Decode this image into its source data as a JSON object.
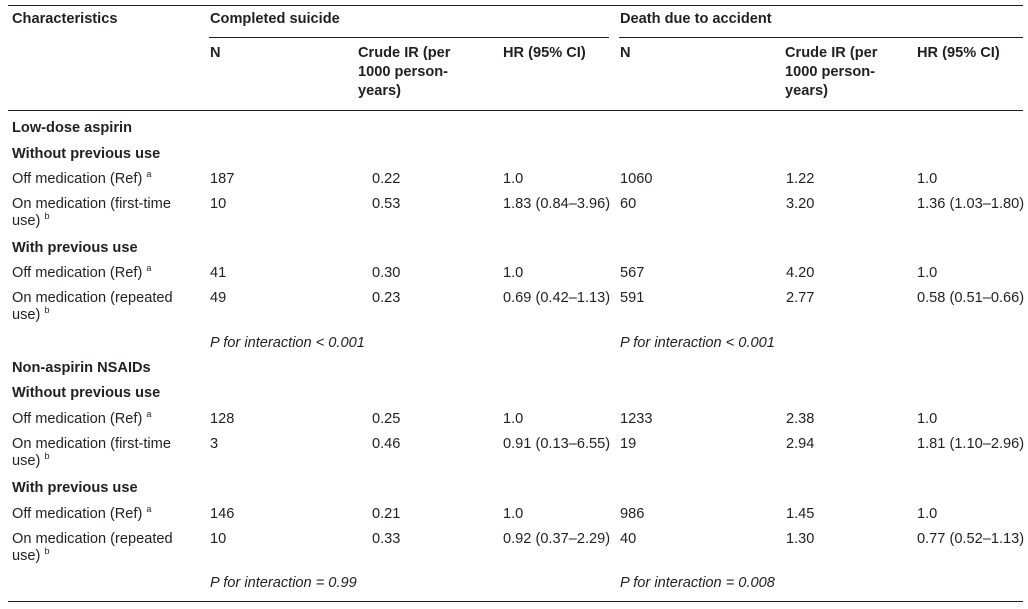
{
  "header": {
    "characteristics": "Characteristics",
    "group1": "Completed suicide",
    "group2": "Death due to accident",
    "n": "N",
    "ir_line1": "Crude IR (per",
    "ir_line2": "1000 person-",
    "ir_line3": "years)",
    "hr": "HR (95% CI)"
  },
  "sections": [
    {
      "title": "Low-dose aspirin",
      "subgroups": [
        {
          "title": "Without previous use",
          "rows": [
            {
              "label1": "Off medication (Ref)",
              "label2": "",
              "sup": "a",
              "s_n": "187",
              "s_ir": "0.22",
              "s_hr": "1.0",
              "a_n": "1060",
              "a_ir": "1.22",
              "a_hr": "1.0"
            },
            {
              "label1": "On medication (first-time",
              "label2": "use)",
              "sup": "b",
              "s_n": "10",
              "s_ir": "0.53",
              "s_hr": "1.83 (0.84–3.96)",
              "a_n": "60",
              "a_ir": "3.20",
              "a_hr": "1.36 (1.03–1.80)"
            }
          ]
        },
        {
          "title": "With previous use",
          "rows": [
            {
              "label1": "Off medication (Ref)",
              "label2": "",
              "sup": "a",
              "s_n": "41",
              "s_ir": "0.30",
              "s_hr": "1.0",
              "a_n": "567",
              "a_ir": "4.20",
              "a_hr": "1.0"
            },
            {
              "label1": "On medication (repeated",
              "label2": "use)",
              "sup": "b",
              "s_n": "49",
              "s_ir": "0.23",
              "s_hr": "0.69 (0.42–1.13)",
              "a_n": "591",
              "a_ir": "2.77",
              "a_hr": "0.58 (0.51–0.66)"
            }
          ]
        }
      ],
      "p_suicide": "P for interaction < 0.001",
      "p_accident": "P for interaction < 0.001"
    },
    {
      "title": "Non-aspirin NSAIDs",
      "subgroups": [
        {
          "title": "Without previous use",
          "rows": [
            {
              "label1": "Off medication (Ref)",
              "label2": "",
              "sup": "a",
              "s_n": "128",
              "s_ir": "0.25",
              "s_hr": "1.0",
              "a_n": "1233",
              "a_ir": "2.38",
              "a_hr": "1.0"
            },
            {
              "label1": "On medication (first-time",
              "label2": "use)",
              "sup": "b",
              "s_n": "3",
              "s_ir": "0.46",
              "s_hr": "0.91 (0.13–6.55)",
              "a_n": "19",
              "a_ir": "2.94",
              "a_hr": "1.81 (1.10–2.96)"
            }
          ]
        },
        {
          "title": "With previous use",
          "rows": [
            {
              "label1": "Off medication (Ref)",
              "label2": "",
              "sup": "a",
              "s_n": "146",
              "s_ir": "0.21",
              "s_hr": "1.0",
              "a_n": "986",
              "a_ir": "1.45",
              "a_hr": "1.0"
            },
            {
              "label1": "On medication (repeated",
              "label2": "use)",
              "sup": "b",
              "s_n": "10",
              "s_ir": "0.33",
              "s_hr": "0.92 (0.37–2.29)",
              "a_n": "40",
              "a_ir": "1.30",
              "a_hr": "0.77 (0.52–1.13)"
            }
          ]
        }
      ],
      "p_suicide": "P for interaction = 0.99",
      "p_accident": "P for interaction = 0.008"
    }
  ]
}
